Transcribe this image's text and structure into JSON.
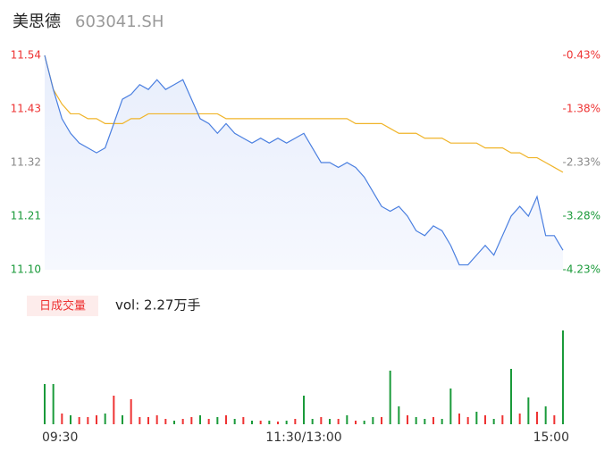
{
  "header": {
    "name": "美思德",
    "code": "603041.SH"
  },
  "chart_data": {
    "type": "intraday",
    "x": [
      0,
      4,
      8,
      12,
      16,
      20,
      24,
      28,
      32,
      36,
      40,
      44,
      48,
      52,
      56,
      60,
      64,
      68,
      72,
      76,
      80,
      84,
      88,
      92,
      96,
      100,
      104,
      108,
      112,
      116,
      120,
      124,
      128,
      132,
      136,
      140,
      144,
      148,
      152,
      156,
      160,
      164,
      168,
      172,
      176,
      180,
      184,
      188,
      192,
      196,
      200,
      204,
      208,
      212,
      216,
      220,
      224,
      228,
      232,
      236,
      240
    ],
    "price": [
      11.54,
      11.47,
      11.41,
      11.38,
      11.36,
      11.35,
      11.34,
      11.35,
      11.4,
      11.45,
      11.46,
      11.48,
      11.47,
      11.49,
      11.47,
      11.48,
      11.49,
      11.45,
      11.41,
      11.4,
      11.38,
      11.4,
      11.38,
      11.37,
      11.36,
      11.37,
      11.36,
      11.37,
      11.36,
      11.37,
      11.38,
      11.35,
      11.32,
      11.32,
      11.31,
      11.32,
      11.31,
      11.29,
      11.26,
      11.23,
      11.22,
      11.23,
      11.21,
      11.18,
      11.17,
      11.19,
      11.18,
      11.15,
      11.11,
      11.11,
      11.13,
      11.15,
      11.13,
      11.17,
      11.21,
      11.23,
      11.21,
      11.25,
      11.17,
      11.17,
      11.14
    ],
    "avg": [
      11.54,
      11.47,
      11.44,
      11.42,
      11.42,
      11.41,
      11.41,
      11.4,
      11.4,
      11.4,
      11.41,
      11.41,
      11.42,
      11.42,
      11.42,
      11.42,
      11.42,
      11.42,
      11.42,
      11.42,
      11.42,
      11.41,
      11.41,
      11.41,
      11.41,
      11.41,
      11.41,
      11.41,
      11.41,
      11.41,
      11.41,
      11.41,
      11.41,
      11.41,
      11.41,
      11.41,
      11.4,
      11.4,
      11.4,
      11.4,
      11.39,
      11.38,
      11.38,
      11.38,
      11.37,
      11.37,
      11.37,
      11.36,
      11.36,
      11.36,
      11.36,
      11.35,
      11.35,
      11.35,
      11.34,
      11.34,
      11.33,
      11.33,
      11.32,
      11.31,
      11.3
    ],
    "price_color": "#4a7fe0",
    "avg_color": "#f0b429",
    "ylim": [
      11.1,
      11.54
    ],
    "yticks": [
      11.54,
      11.43,
      11.32,
      11.21,
      {
        "value": 11.1,
        "label": "11.10"
      }
    ],
    "ytick_colors": [
      "#e33",
      "#e33",
      "#888",
      "#1a9a3a",
      "#1a9a3a"
    ],
    "y2lim": [
      -4.23,
      -0.43
    ],
    "y2ticks": [
      {
        "value": -0.43,
        "label": "-0.43%"
      },
      {
        "value": -1.38,
        "label": "-1.38%"
      },
      {
        "value": -2.33,
        "label": "-2.33%"
      },
      {
        "value": -3.28,
        "label": "-3.28%"
      },
      {
        "value": -4.23,
        "label": "-4.23%"
      }
    ],
    "xlim": [
      0,
      240
    ],
    "xticks": [
      {
        "value": 0,
        "label": "09:30"
      },
      {
        "value": 120,
        "label": "11:30/13:00"
      },
      {
        "value": 240,
        "label": "15:00"
      }
    ],
    "volume_title": "日成交量",
    "volume_text": "vol: 2.27万手",
    "volume": [
      45,
      45,
      12,
      10,
      8,
      8,
      10,
      12,
      32,
      10,
      28,
      8,
      8,
      10,
      6,
      4,
      6,
      8,
      10,
      6,
      8,
      10,
      6,
      8,
      4,
      4,
      4,
      3,
      4,
      6,
      32,
      6,
      8,
      6,
      6,
      10,
      4,
      4,
      8,
      8,
      60,
      20,
      10,
      8,
      6,
      8,
      6,
      40,
      12,
      8,
      14,
      10,
      6,
      10,
      62,
      12,
      30,
      14,
      20,
      10,
      105
    ],
    "volume_colors": [
      "#1a9a3a",
      "#1a9a3a",
      "#e33",
      "#1a9a3a",
      "#e33",
      "#e33",
      "#e33",
      "#1a9a3a",
      "#e33",
      "#1a9a3a",
      "#e33",
      "#e33",
      "#e33",
      "#e33",
      "#e33",
      "#1a9a3a",
      "#e33",
      "#e33",
      "#1a9a3a",
      "#e33",
      "#1a9a3a",
      "#e33",
      "#1a9a3a",
      "#e33",
      "#1a9a3a",
      "#e33",
      "#1a9a3a",
      "#e33",
      "#1a9a3a",
      "#e33",
      "#1a9a3a",
      "#1a9a3a",
      "#e33",
      "#1a9a3a",
      "#e33",
      "#1a9a3a",
      "#e33",
      "#1a9a3a",
      "#1a9a3a",
      "#e33",
      "#1a9a3a",
      "#1a9a3a",
      "#e33",
      "#1a9a3a",
      "#1a9a3a",
      "#e33",
      "#1a9a3a",
      "#1a9a3a",
      "#e33",
      "#e33",
      "#1a9a3a",
      "#e33",
      "#1a9a3a",
      "#e33",
      "#1a9a3a",
      "#e33",
      "#1a9a3a",
      "#e33",
      "#1a9a3a",
      "#e33",
      "#1a9a3a"
    ],
    "vlim": [
      0,
      105
    ]
  }
}
